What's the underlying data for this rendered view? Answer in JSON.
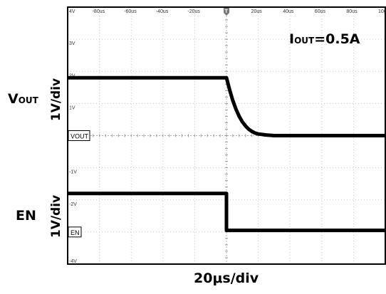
{
  "chart_data": {
    "type": "line",
    "x_unit": "us",
    "x_range": [
      -100,
      100
    ],
    "y_range": [
      4,
      -4
    ],
    "x_ticks": [
      {
        "value": -80,
        "label": "-80us"
      },
      {
        "value": -60,
        "label": "-60us"
      },
      {
        "value": -40,
        "label": "-40us"
      },
      {
        "value": -20,
        "label": "-20us"
      },
      {
        "value": 20,
        "label": "20us"
      },
      {
        "value": 40,
        "label": "40us"
      },
      {
        "value": 60,
        "label": "60us"
      },
      {
        "value": 80,
        "label": "80us"
      },
      {
        "value": 100,
        "label": "100us"
      }
    ],
    "y_ticks": [
      {
        "value": 4,
        "label": "4V"
      },
      {
        "value": 3,
        "label": "3V"
      },
      {
        "value": 2,
        "label": "2V"
      },
      {
        "value": 1,
        "label": "1V"
      },
      {
        "value": -1,
        "label": "-1V"
      },
      {
        "value": -2,
        "label": "-2V"
      },
      {
        "value": -4,
        "label": "-4V"
      }
    ],
    "grid": true,
    "series": [
      {
        "name": "VOUT",
        "marker": "VOUT",
        "x": [
          -100,
          0,
          2,
          4,
          6,
          8,
          10,
          12,
          14,
          16,
          18,
          20,
          25,
          30,
          100
        ],
        "y": [
          1.8,
          1.8,
          1.42,
          1.09,
          0.82,
          0.6,
          0.43,
          0.3,
          0.2,
          0.13,
          0.08,
          0.05,
          0.02,
          0.0,
          0.0
        ]
      },
      {
        "name": "EN",
        "marker": "EN",
        "x": [
          -100,
          0,
          0,
          100
        ],
        "y": [
          -1.8,
          -1.8,
          -2.95,
          -2.95
        ]
      }
    ]
  },
  "annotation": {
    "prefix": "I",
    "sub": "OUT",
    "suffix": "=0.5A"
  },
  "vout_label": {
    "prefix": "V",
    "sub": "OUT"
  },
  "en_label": "EN",
  "vdiv_top": "1V/div",
  "vdiv_bottom": "1V/div",
  "time_div": "20μs/div",
  "trigger_marker": "T"
}
